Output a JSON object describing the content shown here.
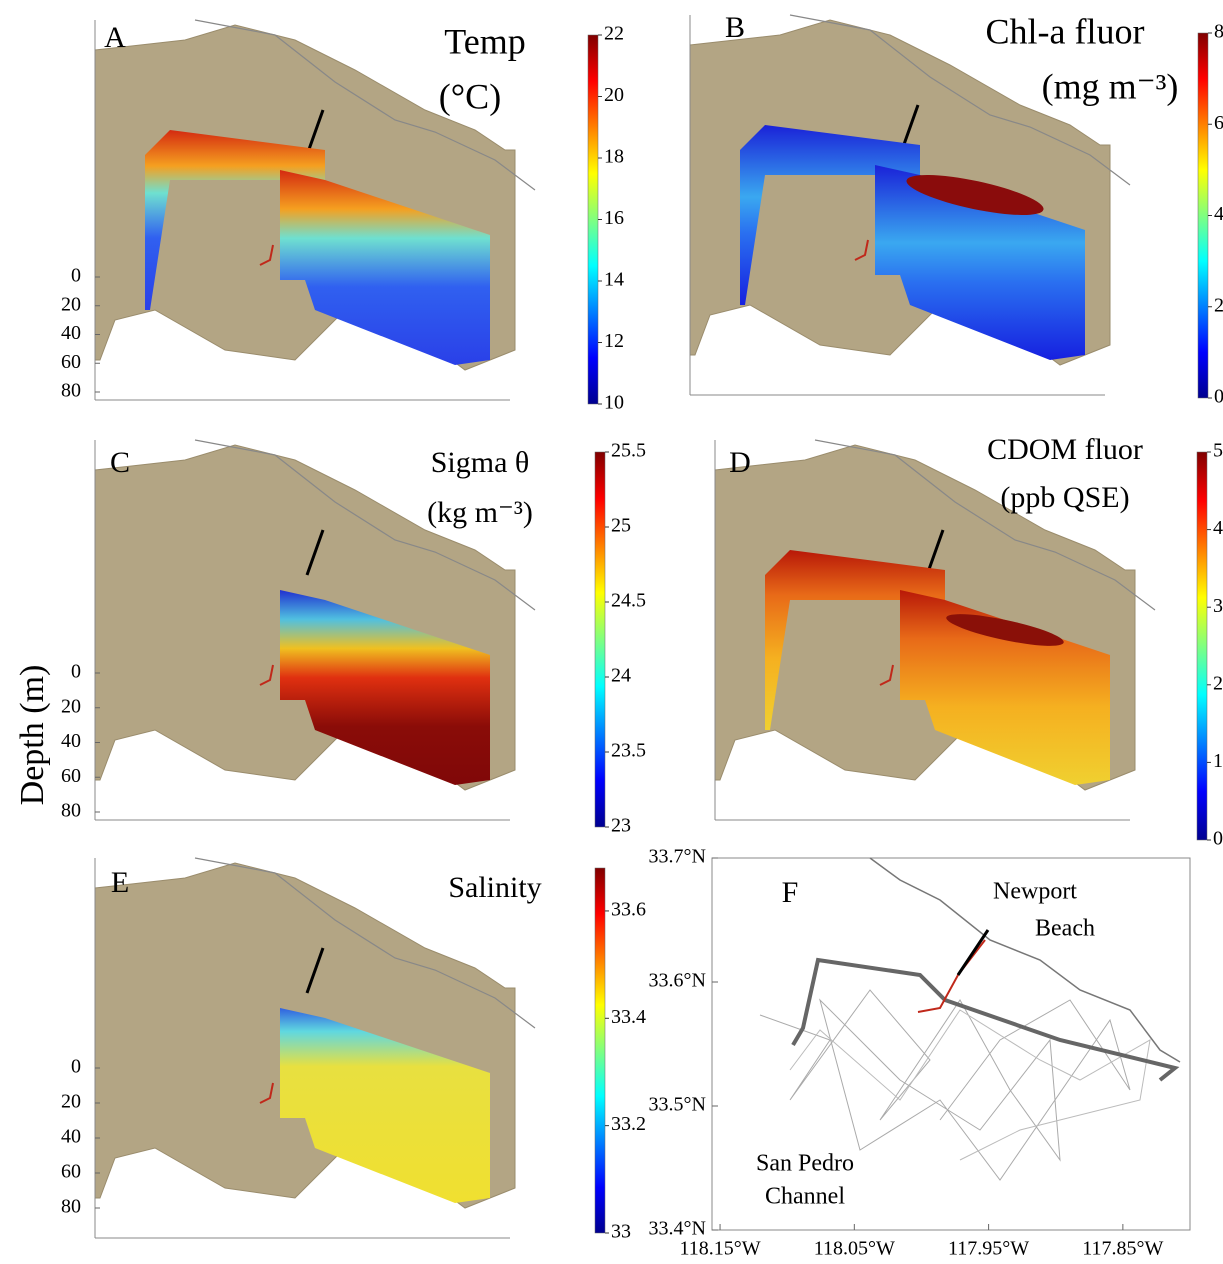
{
  "chart_data": [
    {
      "type": "section",
      "panel": "A",
      "title": [
        "Temp",
        "(°C)"
      ],
      "clim": [
        10,
        22
      ],
      "cticks": [
        10,
        12,
        14,
        16,
        18,
        20,
        22
      ],
      "ylim": [
        0,
        80
      ],
      "yticks": [
        0,
        20,
        40,
        60,
        80
      ],
      "palette": "temp"
    },
    {
      "type": "section",
      "panel": "B",
      "title": [
        "Chl-a fluor",
        "(mg m⁻³)"
      ],
      "clim": [
        0,
        8
      ],
      "cticks": [
        0,
        2,
        4,
        6,
        8
      ],
      "palette": "chl"
    },
    {
      "type": "section",
      "panel": "C",
      "title": [
        "Sigma θ",
        "(kg m⁻³)"
      ],
      "clim": [
        23,
        25.5
      ],
      "cticks": [
        23,
        23.5,
        24,
        24.5,
        25,
        25.5
      ],
      "ylim": [
        0,
        80
      ],
      "yticks": [
        0,
        20,
        40,
        60,
        80
      ],
      "ylabel": "Depth (m)",
      "palette": "sigma"
    },
    {
      "type": "section",
      "panel": "D",
      "title": [
        "CDOM fluor",
        "(ppb QSE)"
      ],
      "clim": [
        0,
        5
      ],
      "cticks": [
        0,
        1,
        2,
        3,
        4,
        5
      ],
      "palette": "cdom"
    },
    {
      "type": "section",
      "panel": "E",
      "title": [
        "Salinity"
      ],
      "clim": [
        33,
        33.68
      ],
      "cticks": [
        33,
        33.2,
        33.4,
        33.6
      ],
      "ylim": [
        0,
        80
      ],
      "yticks": [
        0,
        20,
        40,
        60,
        80
      ],
      "palette": "sal"
    },
    {
      "type": "map",
      "panel": "F",
      "xlim": [
        -118.156,
        -117.8
      ],
      "ylim": [
        33.4,
        33.7
      ],
      "xticks": [
        {
          "value": -118.15,
          "label": "118.15°W"
        },
        {
          "value": -118.05,
          "label": "118.05°W"
        },
        {
          "value": -117.95,
          "label": "117.95°W"
        },
        {
          "value": -117.85,
          "label": "117.85°W"
        }
      ],
      "yticks": [
        {
          "value": 33.4,
          "label": "33.4°N"
        },
        {
          "value": 33.5,
          "label": "33.5°N"
        },
        {
          "value": 33.6,
          "label": "33.6°N"
        },
        {
          "value": 33.7,
          "label": "33.7°N"
        }
      ],
      "annotations": [
        [
          "Newport",
          "Beach"
        ],
        [
          "San Pedro",
          "Channel"
        ]
      ]
    }
  ]
}
